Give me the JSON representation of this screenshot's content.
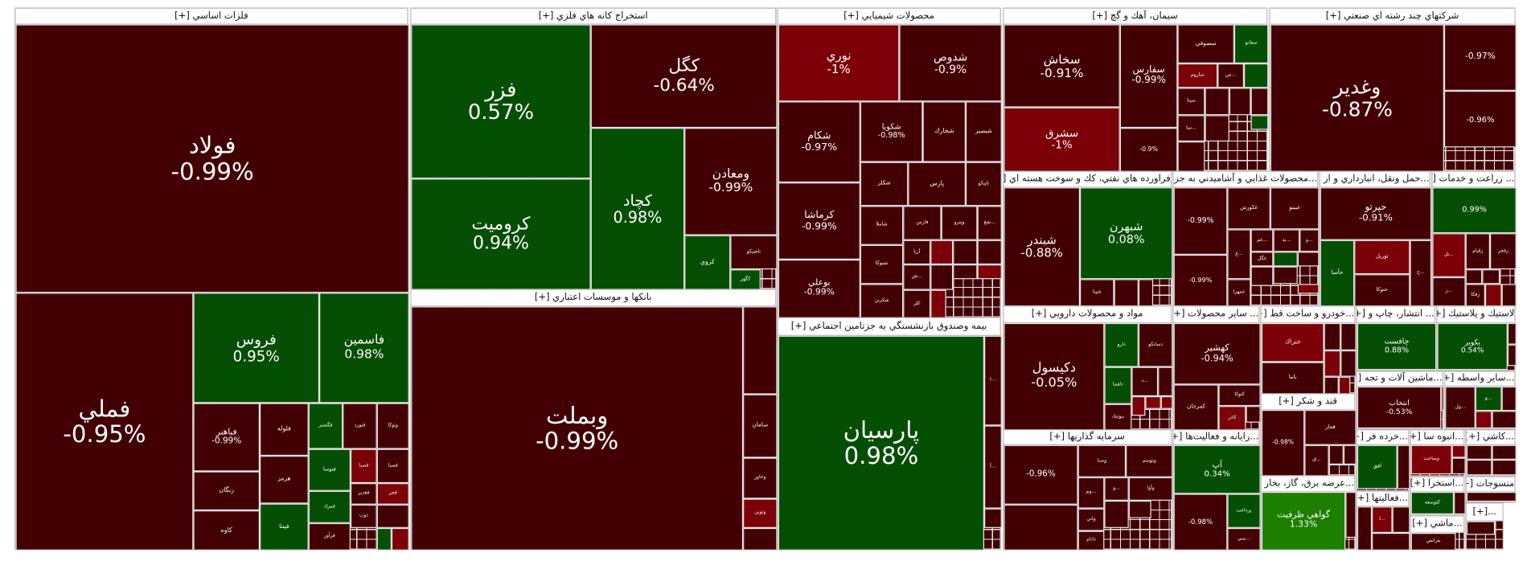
{
  "colors": {
    "dark": "#430004",
    "red": "#7b0008",
    "green": "#054f05",
    "bright_green": "#1c7f00"
  },
  "sectors": [
    {
      "title": "فلزات اساسي [+]",
      "tiles": [
        {
          "symbol": "فولاد",
          "change": "-0.99%",
          "tone": "dark"
        },
        {
          "symbol": "فملي",
          "change": "-0.95%",
          "tone": "dark"
        },
        {
          "symbol": "فروس",
          "change": "0.95%",
          "tone": "green"
        },
        {
          "symbol": "فاسمين",
          "change": "0.98%",
          "tone": "green"
        },
        {
          "symbol": "فباهنر",
          "change": "-0.99%",
          "tone": "dark"
        },
        {
          "symbol": "زنگان",
          "tone": "dark"
        },
        {
          "symbol": "كاوه",
          "tone": "dark"
        },
        {
          "symbol": "فلوله",
          "tone": "dark"
        },
        {
          "symbol": "هرمز",
          "tone": "dark"
        },
        {
          "symbol": "فپنتا",
          "tone": "green"
        },
        {
          "symbol": "فگستر",
          "tone": "green"
        },
        {
          "symbol": "فنورد",
          "tone": "dark"
        },
        {
          "symbol": "وتوكا",
          "tone": "dark"
        },
        {
          "symbol": "فتوسا",
          "tone": "green"
        },
        {
          "symbol": "فصبا",
          "tone": "red"
        },
        {
          "symbol": "فسبا",
          "tone": "dark"
        },
        {
          "symbol": "فمراد",
          "tone": "green"
        },
        {
          "symbol": "فغدير",
          "tone": "dark"
        },
        {
          "symbol": "فجر",
          "tone": "red"
        },
        {
          "symbol": "ذوب",
          "tone": "dark"
        },
        {
          "symbol": "فرآور",
          "tone": "dark"
        }
      ]
    },
    {
      "title": "استخراج كانه هاي فلزي [+]",
      "tiles": [
        {
          "symbol": "فزر",
          "change": "0.57%",
          "tone": "green"
        },
        {
          "symbol": "كروميت",
          "change": "0.94%",
          "tone": "green"
        },
        {
          "symbol": "كگل",
          "change": "-0.64%",
          "tone": "dark"
        },
        {
          "symbol": "كچاد",
          "change": "0.98%",
          "tone": "green"
        },
        {
          "symbol": "ومعادن",
          "change": "-0.99%",
          "tone": "dark"
        },
        {
          "symbol": "كروي",
          "tone": "green"
        },
        {
          "symbol": "تاصيكو",
          "tone": "dark"
        },
        {
          "symbol": "كگهر",
          "tone": "green"
        }
      ]
    },
    {
      "title": "بانكها و موسسات اعتباري [+]",
      "tiles": [
        {
          "symbol": "وبملت",
          "change": "-0.99%",
          "tone": "dark"
        },
        {
          "symbol": "سامان",
          "tone": "dark"
        },
        {
          "symbol": "وخاور",
          "tone": "dark"
        },
        {
          "symbol": "وتوين",
          "tone": "red"
        }
      ]
    },
    {
      "title": "محصولات شيميايي [+]",
      "tiles": [
        {
          "symbol": "نوري",
          "change": "-1%",
          "tone": "red"
        },
        {
          "symbol": "شدوص",
          "change": "-0.9%",
          "tone": "dark"
        },
        {
          "symbol": "شكام",
          "change": "-0.97%",
          "tone": "dark"
        },
        {
          "symbol": "كرماشا",
          "change": "-0.99%",
          "tone": "dark"
        },
        {
          "symbol": "بوعلي",
          "change": "-0.99%",
          "tone": "dark"
        },
        {
          "symbol": "شكويا",
          "change": "-0.98%",
          "tone": "dark"
        },
        {
          "symbol": "شخارك",
          "tone": "dark"
        },
        {
          "symbol": "شبصير",
          "tone": "dark"
        },
        {
          "symbol": "شكلر",
          "tone": "dark"
        },
        {
          "symbol": "پارس",
          "tone": "dark"
        },
        {
          "symbol": "تاپيكو",
          "tone": "dark"
        },
        {
          "symbol": "شاملا",
          "tone": "dark"
        },
        {
          "symbol": "فارس",
          "tone": "dark"
        },
        {
          "symbol": "وپترو",
          "tone": "dark"
        },
        {
          "symbol": "...شغ",
          "tone": "dark"
        },
        {
          "symbol": "شتوكا",
          "tone": "dark"
        },
        {
          "symbol": "شكربن",
          "tone": "dark"
        },
        {
          "symbol": "آريا",
          "tone": "dark"
        },
        {
          "symbol": "...ش",
          "tone": "dark"
        },
        {
          "symbol": "كلر",
          "tone": "dark"
        }
      ]
    },
    {
      "title": "بيمه وصندوق بازنشستگي به جزتامين اجتماعي [+]",
      "tiles": [
        {
          "symbol": "پارسيان",
          "change": "0.98%",
          "tone": "green"
        },
        {
          "symbol": "...ا",
          "tone": "dark"
        },
        {
          "symbol": "...آ",
          "tone": "dark"
        }
      ]
    },
    {
      "title": "سيمان، آهك و گچ [+]",
      "tiles": [
        {
          "symbol": "سخاش",
          "change": "-0.91%",
          "tone": "dark"
        },
        {
          "symbol": "سشرق",
          "change": "-1%",
          "tone": "red"
        },
        {
          "symbol": "سفارس",
          "change": "-0.99%",
          "tone": "dark"
        },
        {
          "symbol": "",
          "change": "-0.9%",
          "tone": "dark"
        },
        {
          "symbol": "سصوفي",
          "tone": "dark"
        },
        {
          "symbol": "سفانو",
          "tone": "green"
        },
        {
          "symbol": "ساروم",
          "tone": "red"
        },
        {
          "symbol": "...س",
          "tone": "dark"
        },
        {
          "symbol": "سيتا",
          "tone": "dark"
        },
        {
          "symbol": "...سا",
          "tone": "dark"
        }
      ]
    },
    {
      "title": "شركتهاي چند رشته اي صنعتي [+]",
      "tiles": [
        {
          "symbol": "وغدير",
          "change": "-0.87%",
          "tone": "dark"
        },
        {
          "symbol": "",
          "change": "-0.97%",
          "tone": "dark"
        },
        {
          "symbol": "",
          "change": "-0.96%",
          "tone": "dark"
        }
      ]
    },
    {
      "title": "فراورده هاي نفتي، كك و سوخت هسته اي [+]",
      "tiles": [
        {
          "symbol": "شبندر",
          "change": "-0.88%",
          "tone": "dark"
        },
        {
          "symbol": "شبهرن",
          "change": "0.08%",
          "tone": "green"
        },
        {
          "symbol": "شپنا",
          "tone": "dark"
        }
      ]
    },
    {
      "title": "...محصولات غذايي و آشاميدني به جز [+]",
      "tiles": [
        {
          "symbol": "",
          "change": "-0.99%",
          "tone": "dark"
        },
        {
          "symbol": "",
          "change": "-0.99%",
          "tone": "dark"
        },
        {
          "symbol": "غكورش",
          "tone": "dark"
        },
        {
          "symbol": "غبينو",
          "tone": "dark"
        },
        {
          "symbol": "...غ",
          "tone": "dark"
        },
        {
          "symbol": "...غم",
          "tone": "dark"
        },
        {
          "symbol": "...به",
          "tone": "dark"
        },
        {
          "symbol": "...و",
          "tone": "dark"
        },
        {
          "symbol": "غگل",
          "tone": "dark"
        },
        {
          "symbol": "غمهرا",
          "tone": "dark"
        }
      ]
    },
    {
      "title": "...حمل ونقل، انبارداري و ار [+]",
      "tiles": [
        {
          "symbol": "حپرتو",
          "change": "-0.91%",
          "tone": "dark"
        },
        {
          "symbol": "حآسا",
          "tone": "green"
        },
        {
          "symbol": "توريل",
          "tone": "red"
        },
        {
          "symbol": "حتوكا",
          "tone": "dark"
        },
        {
          "symbol": "...ح",
          "tone": "dark"
        }
      ]
    },
    {
      "title": "... زراعت و خدمات [+]",
      "tiles": [
        {
          "symbol": "",
          "change": "0.99%",
          "tone": "green"
        },
        {
          "symbol": "...تل",
          "tone": "red"
        },
        {
          "symbol": "زقيام",
          "tone": "dark"
        },
        {
          "symbol": "زفجر",
          "tone": "dark"
        },
        {
          "symbol": "...ز",
          "tone": "dark"
        },
        {
          "symbol": "زفكا",
          "tone": "dark"
        }
      ]
    },
    {
      "title": "مواد و محصولات دارويي [+]",
      "tiles": [
        {
          "symbol": "دكيسول",
          "change": "-0.05%",
          "tone": "dark"
        },
        {
          "symbol": "دارو",
          "tone": "green"
        },
        {
          "symbol": "دسانكو",
          "tone": "dark"
        },
        {
          "symbol": "دلقما",
          "tone": "green"
        },
        {
          "symbol": "...د",
          "tone": "dark"
        },
        {
          "symbol": "بيوتيك",
          "tone": "dark"
        }
      ]
    },
    {
      "title": "سرمايه گذاريها [+]",
      "tiles": [
        {
          "symbol": "",
          "change": "-0.96%",
          "tone": "dark"
        },
        {
          "symbol": "وصنا",
          "tone": "dark"
        },
        {
          "symbol": "وتوسم",
          "tone": "dark"
        },
        {
          "symbol": "...وم",
          "tone": "dark"
        },
        {
          "symbol": "...و",
          "tone": "dark"
        },
        {
          "symbol": "وآوا",
          "tone": "dark"
        },
        {
          "symbol": "واتي",
          "tone": "dark"
        },
        {
          "symbol": "داتام",
          "tone": "dark"
        }
      ]
    },
    {
      "title": "... ساير محصولات [+]",
      "tiles": [
        {
          "symbol": "كهشير",
          "change": "-0.94%",
          "tone": "dark"
        },
        {
          "symbol": "كمرجان",
          "tone": "dark"
        },
        {
          "symbol": "كتوكا",
          "tone": "dark"
        },
        {
          "symbol": "كاذر",
          "tone": "red"
        }
      ]
    },
    {
      "title": "...رايانه و فعاليت‌ها [+]",
      "tiles": [
        {
          "symbol": "آپ",
          "change": "0.34%",
          "tone": "green"
        },
        {
          "symbol": "",
          "change": "-0.98%",
          "tone": "dark"
        },
        {
          "symbol": "پرداخت",
          "tone": "green"
        },
        {
          "symbol": "...سي",
          "tone": "dark"
        }
      ]
    },
    {
      "title": "...خودرو و ساخت قط [+]",
      "tiles": [
        {
          "symbol": "ختراك",
          "tone": "red"
        },
        {
          "symbol": "ناما",
          "tone": "dark"
        }
      ]
    },
    {
      "title": "قند و شكر [+]",
      "tiles": [
        {
          "symbol": "",
          "change": "-0.98%",
          "tone": "dark"
        },
        {
          "symbol": "قجار",
          "tone": "dark"
        },
        {
          "symbol": "...ق",
          "tone": "dark"
        }
      ]
    },
    {
      "title": "...عرضه برق، گاز، بخار [+]",
      "tiles": [
        {
          "symbol": "گواهي ظرفيت",
          "change": "1.33%",
          "tone": "bright_green"
        }
      ]
    },
    {
      "title": "... انتشار، چاپ و [+]",
      "tiles": [
        {
          "symbol": "چافست",
          "change": "0.88%",
          "tone": "green"
        }
      ]
    },
    {
      "title": "لاستيك و پلاستيك [+]",
      "tiles": [
        {
          "symbol": "پكوير",
          "change": "0.54%",
          "tone": "green"
        }
      ]
    },
    {
      "title": "...ماشين آلات و تجه [+]",
      "tiles": [
        {
          "symbol": "انتخاب",
          "change": "-0.53%",
          "tone": "dark"
        }
      ]
    },
    {
      "title": "...ساير واسطه [+]",
      "tiles": [
        {
          "symbol": "...ول",
          "tone": "dark"
        },
        {
          "symbol": "...و",
          "tone": "green"
        }
      ]
    },
    {
      "title": "...خرده فر [+]",
      "tiles": [
        {
          "symbol": "افق",
          "tone": "green"
        }
      ]
    },
    {
      "title": "...انبوه سا [+]",
      "tiles": [
        {
          "symbol": "وساخت",
          "tone": "red"
        }
      ]
    },
    {
      "title": "...كاشي [+]",
      "tiles": []
    },
    {
      "title": "...استخرا [+]",
      "tiles": [
        {
          "symbol": "كتوسعه",
          "tone": "green"
        }
      ]
    },
    {
      "title": "منسوجات [+]",
      "tiles": []
    },
    {
      "title": "...فعاليتها [+]",
      "tiles": [
        {
          "symbol": "...ا",
          "tone": "red"
        }
      ]
    },
    {
      "title": "...ماشي [+]",
      "tiles": [
        {
          "symbol": "بترانس",
          "tone": "dark"
        }
      ]
    },
    {
      "title": "...[+]",
      "tiles": []
    }
  ]
}
